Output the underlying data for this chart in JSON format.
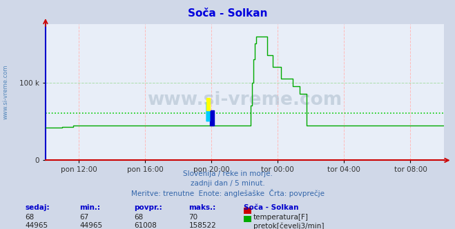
{
  "title": "Soča - Solkan",
  "title_color": "#0000dd",
  "bg_color": "#d0d8e8",
  "plot_bg_color": "#e8eef8",
  "grid_color_red": "#ffbbbb",
  "grid_color_green": "#aaddaa",
  "xlabel_ticks": [
    "pon 12:00",
    "pon 16:00",
    "pon 20:00",
    "tor 00:00",
    "tor 04:00",
    "tor 08:00"
  ],
  "ylabel_ticks": [
    "0",
    "100 k"
  ],
  "ymax": 175000,
  "ymin": 0,
  "avg_flow": 61008,
  "avg_temp": 68,
  "subtitle_lines": [
    "Slovenija / reke in morje.",
    "zadnji dan / 5 minut.",
    "Meritve: trenutne  Enote: anglešaške  Črta: povprečje"
  ],
  "table_headers": [
    "sedaj:",
    "min.:",
    "povpr.:",
    "maks.:",
    "Soča - Solkan"
  ],
  "table_row1": [
    "68",
    "67",
    "68",
    "70"
  ],
  "table_row2": [
    "44965",
    "44965",
    "61008",
    "158522"
  ],
  "label_temp": "temperatura[F]",
  "label_flow": "pretok[čevelj3/min]",
  "watermark": "www.si-vreme.com",
  "watermark_color": "#aabbcc",
  "side_label": "www.si-vreme.com",
  "side_label_color": "#5588bb",
  "arrow_color": "#cc0000",
  "flow_line_color": "#00aa00",
  "temp_line_color": "#cc0000",
  "avg_flow_line_color": "#00cc00",
  "avg_temp_line_color": "#cc0000",
  "spine_left_color": "#0000cc",
  "spine_bottom_color": "#cc0000"
}
